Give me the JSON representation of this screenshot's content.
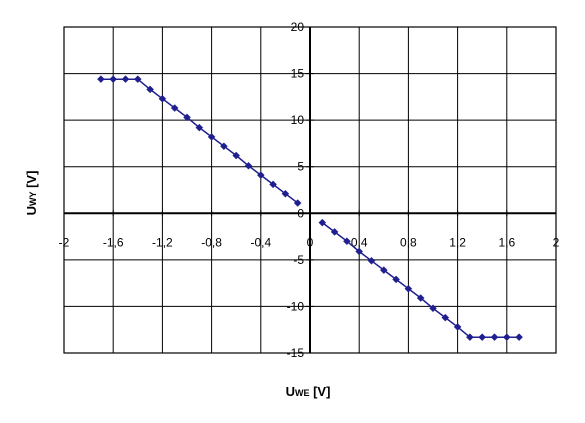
{
  "chart_data": {
    "type": "scatter",
    "connected": true,
    "title": "",
    "xlabel": {
      "main": "U",
      "sub": "WE",
      "unit": " [V]"
    },
    "ylabel": {
      "main": "U",
      "sub": "WY",
      "unit": " [V]"
    },
    "xlim": [
      -2,
      2
    ],
    "ylim": [
      -15,
      20
    ],
    "x_ticks": [
      -2,
      -1.6,
      -1.2,
      -0.8,
      -0.4,
      0,
      0.4,
      0.8,
      1.2,
      1.6,
      2
    ],
    "x_tick_labels": [
      "-2",
      "-1,6",
      "-1,2",
      "-0,8",
      "-0,4",
      "0",
      "0,4",
      "0,8",
      "1,2",
      "1,6",
      "2"
    ],
    "y_ticks": [
      -15,
      -10,
      -5,
      0,
      5,
      10,
      15,
      20
    ],
    "y_tick_labels": [
      "-15",
      "-10",
      "-5",
      "0",
      "5",
      "10",
      "15",
      "20"
    ],
    "grid": true,
    "legend": "none",
    "marker": "diamond",
    "color": "#1f1f8f",
    "series": [
      {
        "x": [
          -1.7,
          -1.6,
          -1.5,
          -1.4,
          -1.3,
          -1.2,
          -1.1,
          -1.0,
          -0.9,
          -0.8,
          -0.7,
          -0.6,
          -0.5,
          -0.4,
          -0.3,
          -0.2,
          -0.1
        ],
        "y": [
          14.4,
          14.4,
          14.4,
          14.4,
          13.3,
          12.3,
          11.3,
          10.3,
          9.2,
          8.2,
          7.2,
          6.2,
          5.1,
          4.1,
          3.1,
          2.1,
          1.1
        ]
      },
      {
        "x": [
          0.1,
          0.2,
          0.3,
          0.4,
          0.5,
          0.6,
          0.7,
          0.8,
          0.9,
          1.0,
          1.1,
          1.2,
          1.3,
          1.4,
          1.5,
          1.6,
          1.7
        ],
        "y": [
          -1.0,
          -2.0,
          -3.0,
          -4.1,
          -5.1,
          -6.1,
          -7.1,
          -8.1,
          -9.1,
          -10.2,
          -11.2,
          -12.2,
          -13.3,
          -13.3,
          -13.3,
          -13.3,
          -13.3
        ]
      }
    ]
  }
}
